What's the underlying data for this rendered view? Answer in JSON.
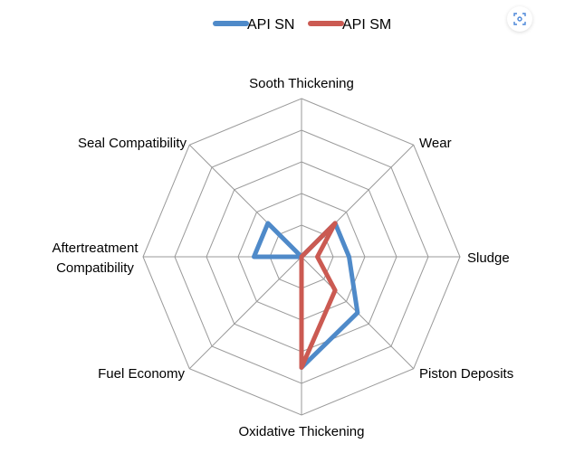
{
  "chart_data": {
    "type": "radar",
    "axes": [
      "Sooth Thickening",
      "Wear",
      "Sludge",
      "Piston Deposits",
      "Oxidative Thickening",
      "Fuel Economy",
      "Aftertreatment Compatibility",
      "Seal Compatibility"
    ],
    "rlim": [
      0,
      5
    ],
    "rings": 5,
    "grid": true,
    "legend_position": "top",
    "series": [
      {
        "name": "API SN",
        "color": "#4f8ac9",
        "values": [
          0,
          1.5,
          1.5,
          2.5,
          3.5,
          0,
          1.5,
          1.5
        ]
      },
      {
        "name": "API SM",
        "color": "#cb5a52",
        "values": [
          0,
          1.5,
          0.5,
          1.5,
          3.5,
          0,
          0,
          0
        ]
      }
    ]
  },
  "ui": {
    "lens_icon": "scan-search-icon"
  }
}
